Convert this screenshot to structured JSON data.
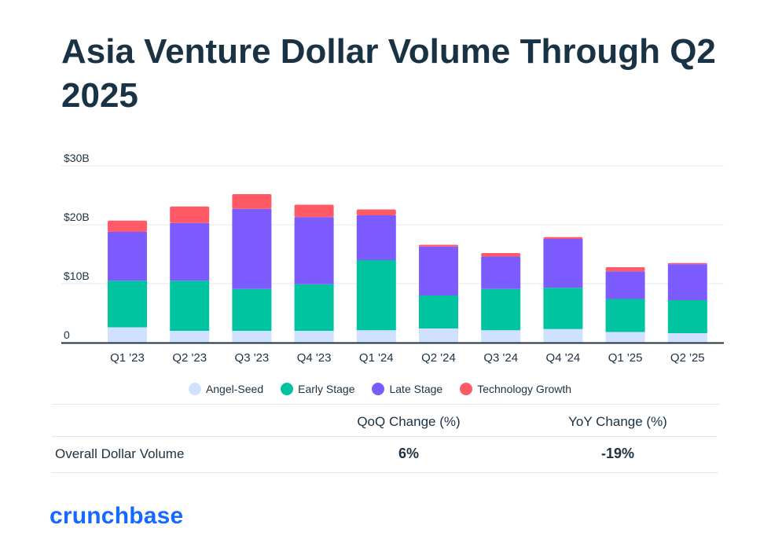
{
  "title": "Asia Venture Dollar Volume Through Q2 2025",
  "chart_data": {
    "type": "bar",
    "stacked": true,
    "categories": [
      "Q1 '23",
      "Q2 '23",
      "Q3 '23",
      "Q4 '23",
      "Q1 '24",
      "Q2 '24",
      "Q3 '24",
      "Q4 '24",
      "Q1 '25",
      "Q2 '25"
    ],
    "series": [
      {
        "name": "Angel-Seed",
        "color": "#cfe1ff",
        "values": [
          2.6,
          2.0,
          2.0,
          2.0,
          2.1,
          2.4,
          2.1,
          2.3,
          1.8,
          1.6
        ]
      },
      {
        "name": "Early Stage",
        "color": "#00c4a0",
        "values": [
          7.9,
          8.5,
          7.1,
          7.9,
          11.9,
          5.6,
          7.0,
          7.0,
          5.6,
          5.6
        ]
      },
      {
        "name": "Late Stage",
        "color": "#7c5cff",
        "values": [
          8.3,
          9.8,
          13.6,
          11.4,
          7.6,
          8.3,
          5.5,
          8.3,
          4.7,
          6.1
        ]
      },
      {
        "name": "Technology Growth",
        "color": "#ff5a66",
        "values": [
          1.9,
          2.8,
          2.5,
          2.1,
          1.0,
          0.3,
          0.6,
          0.3,
          0.7,
          0.2
        ]
      }
    ],
    "ylim": [
      0,
      30
    ],
    "yticks": [
      0,
      10,
      20,
      30
    ],
    "ytick_labels": [
      "0",
      "$10B",
      "$20B",
      "$30B"
    ],
    "grid": true,
    "legend_position": "bottom"
  },
  "table": {
    "headers": [
      "QoQ Change (%)",
      "YoY Change (%)"
    ],
    "row_label": "Overall Dollar Volume",
    "values": [
      "6%",
      "-19%"
    ]
  },
  "brand": "crunchbase",
  "colors": {
    "title": "#1a3344",
    "grid": "#e6e8eb",
    "axis": "#1c3142",
    "brand": "#146aff"
  }
}
